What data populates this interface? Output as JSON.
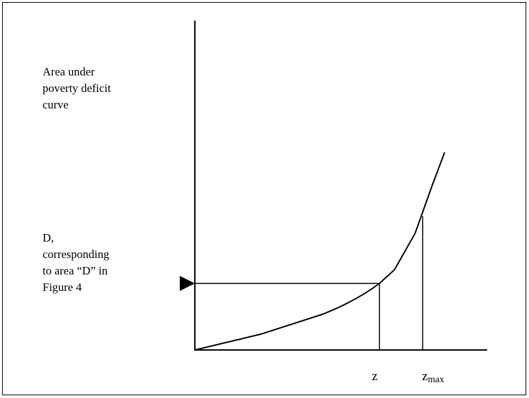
{
  "y_axis_label": {
    "lines": [
      "Area under",
      "poverty deficit",
      "curve"
    ]
  },
  "marked_level_label": {
    "lines": [
      "D,",
      "corresponding",
      "to area “D” in",
      "Figure 4"
    ]
  },
  "x_markers": [
    {
      "base": "z"
    },
    {
      "base": "z",
      "subscript": "max"
    }
  ]
}
